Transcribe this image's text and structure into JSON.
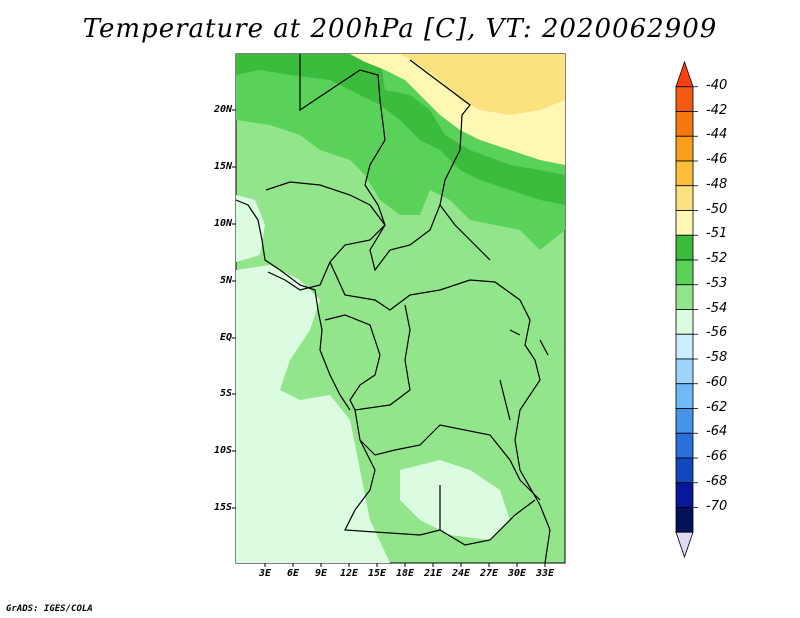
{
  "title": "Temperature at 200hPa [C], VT: 2020062909",
  "credit": "GrADS: IGES/COLA",
  "map": {
    "lat_labels": [
      "20N",
      "15N",
      "10N",
      "5N",
      "EQ",
      "5S",
      "10S",
      "15S"
    ],
    "lon_labels": [
      "3E",
      "6E",
      "9E",
      "12E",
      "15E",
      "18E",
      "21E",
      "24E",
      "27E",
      "30E",
      "33E"
    ]
  },
  "colorbar": {
    "labels": [
      "-40",
      "-42",
      "-44",
      "-46",
      "-48",
      "-50",
      "-51",
      "-52",
      "-53",
      "-54",
      "-56",
      "-58",
      "-60",
      "-62",
      "-64",
      "-66",
      "-68",
      "-70"
    ],
    "colors": [
      "#ff3e0f",
      "#f25a10",
      "#f7780f",
      "#f99d1a",
      "#fcbe3a",
      "#fce27f",
      "#fff7b3",
      "#3cbc3c",
      "#5ad25a",
      "#92e58b",
      "#dcfce1",
      "#cbeefd",
      "#9ed4fb",
      "#6fb9f7",
      "#4794ec",
      "#2a6fdc",
      "#1347be",
      "#08189a",
      "#021158",
      "#dcdcf5"
    ]
  },
  "colors": {
    "level_51": "#fff7b3",
    "level_50": "#fce27f",
    "level_52": "#3cbc3c",
    "level_53": "#5ad25a",
    "level_54": "#92e58b",
    "level_56": "#dcfce1"
  }
}
